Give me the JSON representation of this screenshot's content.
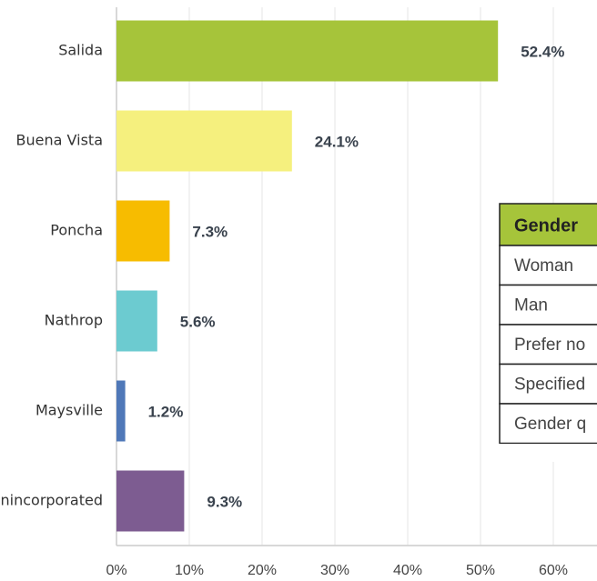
{
  "chart_data": {
    "type": "hbar",
    "categories": [
      "Salida",
      "Buena Vista",
      "Poncha",
      "Nathrop",
      "Maysville",
      "Unincorporated"
    ],
    "values": [
      52.4,
      24.1,
      7.3,
      5.6,
      1.2,
      9.3
    ],
    "value_labels": [
      "52.4%",
      "24.1%",
      "7.3%",
      "5.6%",
      "1.2%",
      "9.3%"
    ],
    "colors": [
      "#a6c43a",
      "#f5f07e",
      "#f7bc00",
      "#6ccbd0",
      "#4f78b8",
      "#7d5c91"
    ],
    "xlim": [
      0,
      66
    ],
    "xticks": [
      {
        "value": 0,
        "label": "0%"
      },
      {
        "value": 10,
        "label": "10%"
      },
      {
        "value": 20,
        "label": "20%"
      },
      {
        "value": 30,
        "label": "30%"
      },
      {
        "value": 40,
        "label": "40%"
      },
      {
        "value": 50,
        "label": "50%"
      },
      {
        "value": 60,
        "label": "60%"
      }
    ],
    "grid": true
  },
  "table": {
    "header": "Gender",
    "rows": [
      "Woman",
      "Man",
      "Prefer no",
      "Specified",
      "Gender q"
    ]
  }
}
